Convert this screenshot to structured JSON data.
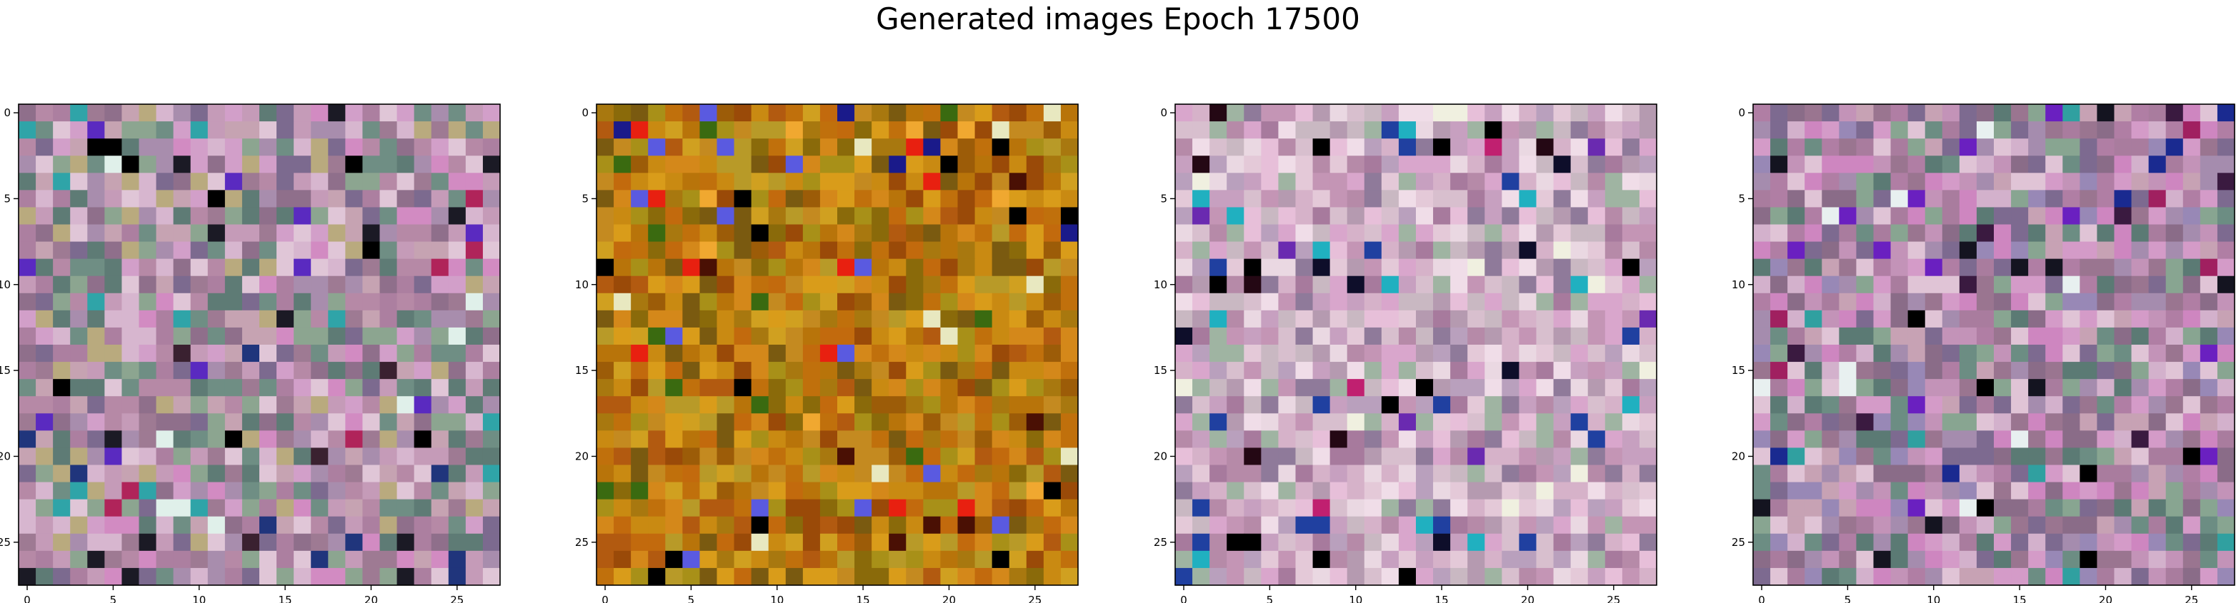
{
  "figure": {
    "title": "Generated images Epoch 17500"
  },
  "chart_data": [
    {
      "type": "heatmap",
      "title": "",
      "xlabel": "",
      "ylabel": "",
      "grid_size": [
        28,
        28
      ],
      "xlim": [
        -0.5,
        27.5
      ],
      "ylim": [
        27.5,
        -0.5
      ],
      "xticks": [
        0,
        5,
        10,
        15,
        20,
        25
      ],
      "yticks": [
        0,
        5,
        10,
        15,
        20,
        25
      ],
      "tick_labels": [
        "0",
        "5",
        "10",
        "15",
        "20",
        "25"
      ],
      "palette": [
        "#c59bb8",
        "#b689a6",
        "#d29fc9",
        "#9e7a93",
        "#8f6f8b",
        "#c6a3b2",
        "#a88dad",
        "#d7b6cf",
        "#8ca590",
        "#6f8e84",
        "#b9aa7e",
        "#7c6a8f",
        "#d28bc2",
        "#ac7fa0",
        "#5e7b75",
        "#e0c6d7"
      ],
      "accent_colors": [
        "#000000",
        "#1b1a25",
        "#3a2130",
        "#20357c",
        "#5a2ac0",
        "#2fa4a8",
        "#e0f0ea",
        "#b0245a"
      ],
      "seed": 11
    },
    {
      "type": "heatmap",
      "title": "",
      "xlabel": "",
      "ylabel": "",
      "grid_size": [
        28,
        28
      ],
      "xlim": [
        -0.5,
        27.5
      ],
      "ylim": [
        27.5,
        -0.5
      ],
      "xticks": [
        0,
        5,
        10,
        15,
        20,
        25
      ],
      "yticks": [
        0,
        5,
        10,
        15,
        20,
        25
      ],
      "tick_labels": [
        "0",
        "5",
        "10",
        "15",
        "20",
        "25"
      ],
      "palette": [
        "#c98a12",
        "#b8740a",
        "#d99c1a",
        "#9c5c08",
        "#c26a0d",
        "#a8780f",
        "#d0a020",
        "#b25a10",
        "#8a6a0a",
        "#c48a20",
        "#9a4a08",
        "#a89018",
        "#d4881a",
        "#7a5a10",
        "#c0700c",
        "#b89a28"
      ],
      "accent_colors": [
        "#000000",
        "#4a1004",
        "#1a1a8a",
        "#e8e8c0",
        "#3a6a10",
        "#e82010",
        "#5a5ae0",
        "#f0a830"
      ],
      "seed": 23
    },
    {
      "type": "heatmap",
      "title": "",
      "xlabel": "",
      "ylabel": "",
      "grid_size": [
        28,
        28
      ],
      "xlim": [
        -0.5,
        27.5
      ],
      "ylim": [
        27.5,
        -0.5
      ],
      "xticks": [
        0,
        5,
        10,
        15,
        20,
        25
      ],
      "yticks": [
        0,
        5,
        10,
        15,
        20,
        25
      ],
      "tick_labels": [
        "0",
        "5",
        "10",
        "15",
        "20",
        "25"
      ],
      "palette": [
        "#d6b2c9",
        "#c495b5",
        "#e4c9d8",
        "#b68aa8",
        "#a77a9d",
        "#d8bfce",
        "#b9a0bd",
        "#ead8e2",
        "#9fb4a2",
        "#c7a0c0",
        "#d9a6cc",
        "#8f7a9a",
        "#e7bfd9",
        "#b59ab0",
        "#c9b8c2",
        "#f0dde8"
      ],
      "accent_colors": [
        "#000000",
        "#0e0e2a",
        "#240814",
        "#2040a0",
        "#6a2ab0",
        "#20b0c0",
        "#f0f0e0",
        "#c02070"
      ],
      "seed": 37
    },
    {
      "type": "heatmap",
      "title": "",
      "xlabel": "",
      "ylabel": "",
      "grid_size": [
        28,
        28
      ],
      "xlim": [
        -0.5,
        27.5
      ],
      "ylim": [
        27.5,
        -0.5
      ],
      "xticks": [
        0,
        5,
        10,
        15,
        20,
        25
      ],
      "yticks": [
        0,
        5,
        10,
        15,
        20,
        25
      ],
      "tick_labels": [
        "0",
        "5",
        "10",
        "15",
        "20",
        "25"
      ],
      "palette": [
        "#c393b8",
        "#b07ea4",
        "#d49bc8",
        "#9a7590",
        "#8a6c88",
        "#c7a2b4",
        "#a58cae",
        "#d3b1cc",
        "#88a591",
        "#6c8d83",
        "#7d6a90",
        "#ce86c0",
        "#a97c9e",
        "#5b7a74",
        "#e0c4d6",
        "#9888b6"
      ],
      "accent_colors": [
        "#000000",
        "#141420",
        "#3a1a40",
        "#1a2a90",
        "#6a20c0",
        "#30a0a0",
        "#e8f0f0",
        "#a02060"
      ],
      "seed": 53
    }
  ]
}
